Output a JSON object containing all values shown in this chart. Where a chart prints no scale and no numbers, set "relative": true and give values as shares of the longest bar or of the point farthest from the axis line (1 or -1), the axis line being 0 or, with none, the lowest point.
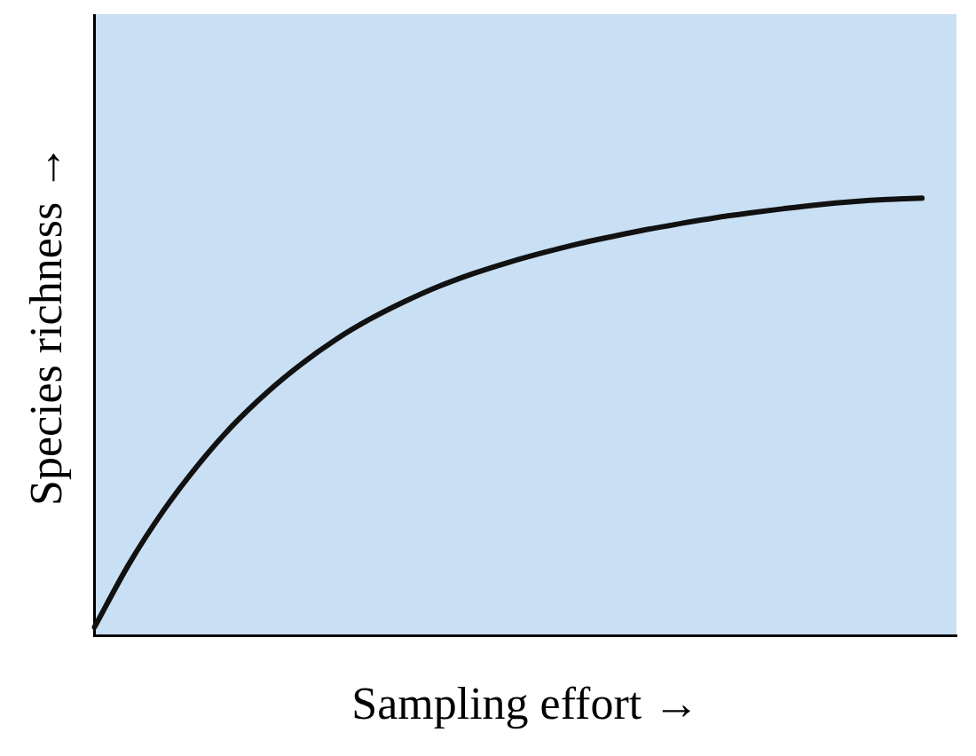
{
  "chart_data": {
    "type": "line",
    "relative": true,
    "xlabel": "Sampling effort →",
    "ylabel": "Species richness →",
    "categories": [
      null,
      null,
      null,
      null,
      null,
      null,
      null,
      null,
      null,
      null,
      null,
      null,
      null,
      null,
      null,
      null,
      null,
      null,
      null,
      null,
      null,
      null,
      null,
      null,
      null,
      null
    ],
    "series": [
      {
        "color": "#111111",
        "values": [
          0.02,
          0.164,
          0.286,
          0.39,
          0.48,
          0.556,
          0.621,
          0.677,
          0.724,
          0.764,
          0.799,
          0.828,
          0.853,
          0.875,
          0.895,
          0.912,
          0.928,
          0.942,
          0.955,
          0.966,
          0.976,
          0.985,
          0.992,
          0.997,
          1,
          null
        ]
      }
    ],
    "grid": false,
    "legend": false,
    "marker": "none",
    "line_style": "solid"
  }
}
